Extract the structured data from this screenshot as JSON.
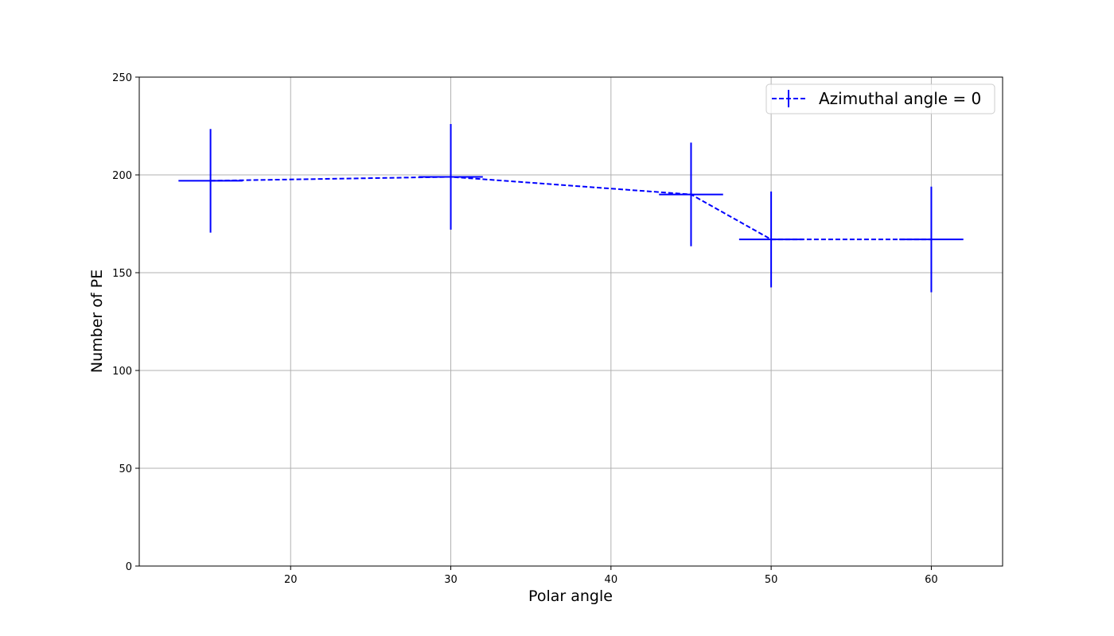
{
  "chart_data": {
    "type": "line",
    "title": "",
    "xlabel": "Polar angle",
    "ylabel": "Number of PE",
    "xlim": [
      10.55,
      64.45
    ],
    "ylim": [
      0,
      250
    ],
    "x_ticks": [
      20,
      30,
      40,
      50,
      60
    ],
    "x_tick_labels": [
      "20",
      "30",
      "40",
      "50",
      "60"
    ],
    "y_ticks": [
      0,
      50,
      100,
      150,
      200,
      250
    ],
    "y_tick_labels": [
      "0",
      "50",
      "100",
      "150",
      "200",
      "250"
    ],
    "grid": true,
    "legend_position": "top-right",
    "series": [
      {
        "name": "Azimuthal angle = 0",
        "color": "#0000ff",
        "line_style": "dashed",
        "x": [
          15,
          30,
          45,
          50,
          60
        ],
        "y": [
          197,
          199,
          190,
          167,
          167
        ],
        "x_err": [
          2,
          2,
          2,
          2,
          2
        ],
        "y_err": [
          26.5,
          27,
          26.5,
          24.5,
          27
        ]
      }
    ]
  }
}
